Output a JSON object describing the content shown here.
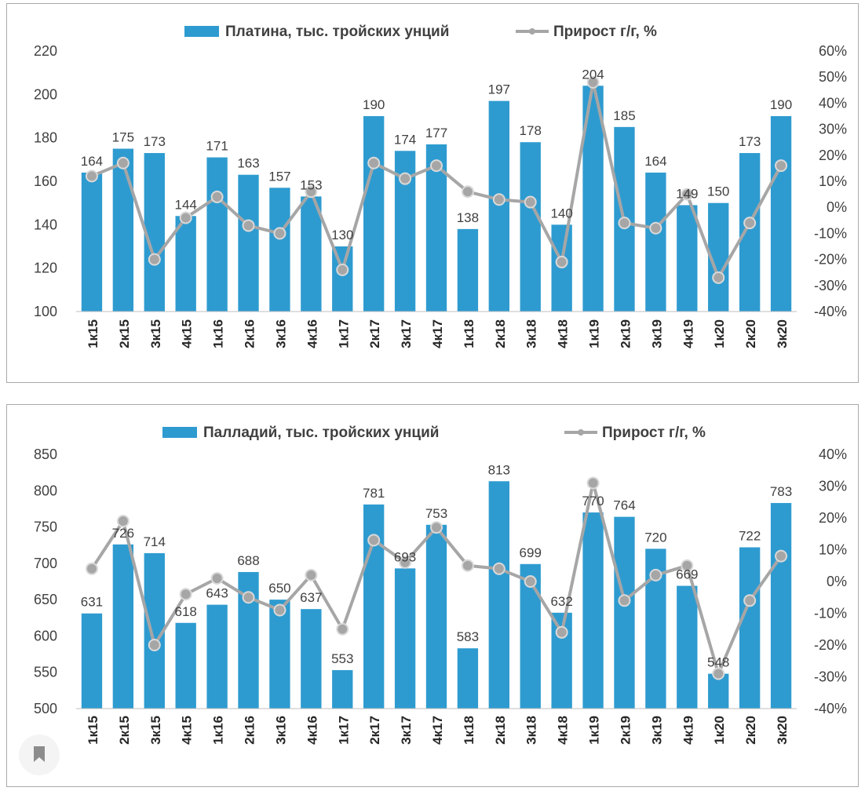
{
  "chart_data": [
    {
      "type": "bar",
      "categories": [
        "1к15",
        "2к15",
        "3к15",
        "4к15",
        "1к16",
        "2к16",
        "3к16",
        "4к16",
        "1к17",
        "2к17",
        "3к17",
        "4к17",
        "1к18",
        "2к18",
        "3к18",
        "4к18",
        "1к19",
        "2к19",
        "3к19",
        "4к19",
        "1к20",
        "2к20",
        "3к20"
      ],
      "series": [
        {
          "name": "Платина, тыс. тройских унций",
          "kind": "bar",
          "axis": "left",
          "color": "#2e9bd0",
          "values": [
            164,
            175,
            173,
            144,
            171,
            163,
            157,
            153,
            130,
            190,
            174,
            177,
            138,
            197,
            178,
            140,
            204,
            185,
            164,
            149,
            150,
            173,
            190
          ]
        },
        {
          "name": "Прирост г/г, %",
          "kind": "line",
          "axis": "right",
          "color": "#a6a6a6",
          "values": [
            12,
            17,
            -20,
            -4,
            4,
            -7,
            -10,
            6,
            -24,
            17,
            11,
            16,
            6,
            3,
            2,
            -21,
            48,
            -6,
            -8,
            5,
            -27,
            -6,
            16
          ]
        }
      ],
      "y_left": {
        "range": [
          100,
          220
        ],
        "ticks": [
          "100",
          "120",
          "140",
          "160",
          "180",
          "200",
          "220"
        ]
      },
      "y_right": {
        "range": [
          -40,
          60
        ],
        "ticks": [
          "-40%",
          "-30%",
          "-20%",
          "-10%",
          "0%",
          "10%",
          "20%",
          "30%",
          "40%",
          "50%",
          "60%"
        ]
      },
      "grid": false,
      "legend": "top-center"
    },
    {
      "type": "bar",
      "categories": [
        "1к15",
        "2к15",
        "3к15",
        "4к15",
        "1к16",
        "2к16",
        "3к16",
        "4к16",
        "1к17",
        "2к17",
        "3к17",
        "4к17",
        "1к18",
        "2к18",
        "3к18",
        "4к18",
        "1к19",
        "2к19",
        "3к19",
        "4к19",
        "1к20",
        "2к20",
        "3к20"
      ],
      "series": [
        {
          "name": "Палладий, тыс. тройских унций",
          "kind": "bar",
          "axis": "left",
          "color": "#2e9bd0",
          "values": [
            631,
            726,
            714,
            618,
            643,
            688,
            650,
            637,
            553,
            781,
            693,
            753,
            583,
            813,
            699,
            632,
            770,
            764,
            720,
            669,
            548,
            722,
            783
          ]
        },
        {
          "name": "Прирост г/г, %",
          "kind": "line",
          "axis": "right",
          "color": "#a6a6a6",
          "values": [
            4,
            19,
            -20,
            -4,
            1,
            -5,
            -9,
            2,
            -15,
            13,
            6,
            17,
            5,
            4,
            0,
            -16,
            31,
            -6,
            2,
            5,
            -29,
            -6,
            8
          ]
        }
      ],
      "y_left": {
        "range": [
          500,
          850
        ],
        "ticks": [
          "500",
          "550",
          "600",
          "650",
          "700",
          "750",
          "800",
          "850"
        ]
      },
      "y_right": {
        "range": [
          -40,
          40
        ],
        "ticks": [
          "-40%",
          "-30%",
          "-20%",
          "-10%",
          "0%",
          "10%",
          "20%",
          "30%",
          "40%"
        ]
      },
      "grid": false,
      "legend": "top-center"
    }
  ],
  "ui": {
    "bookmark_icon": "bookmark-icon"
  }
}
